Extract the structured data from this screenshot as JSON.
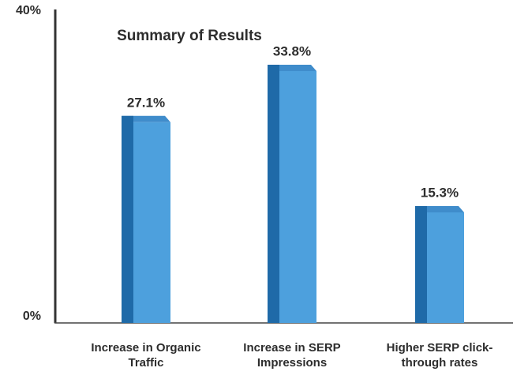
{
  "chart_data": {
    "type": "bar",
    "title": "Summary of Results",
    "categories": [
      "Increase in Organic Traffic",
      "Increase in SERP Impressions",
      "Higher SERP click-through rates"
    ],
    "values": [
      27.1,
      33.8,
      15.3
    ],
    "value_labels": [
      "27.1%",
      "33.8%",
      "15.3%"
    ],
    "color": "#4da0dd",
    "ylim": [
      0,
      40
    ],
    "yticks": [
      {
        "value": 0,
        "label": "0%"
      },
      {
        "value": 40,
        "label": "40%"
      }
    ]
  }
}
